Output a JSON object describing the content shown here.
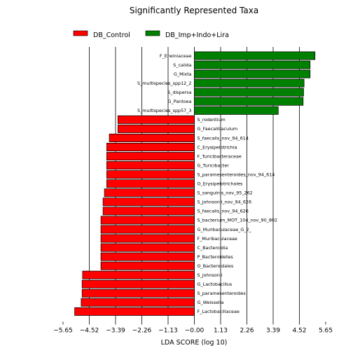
{
  "chart_data": {
    "type": "bar",
    "orientation": "horizontal",
    "title": "Significantly Represented Taxa",
    "xlabel": "LDA SCORE (log 10)",
    "ylabel": "",
    "xlim": [
      -5.65,
      5.65
    ],
    "xticks": [
      -5.65,
      -4.52,
      -3.39,
      -2.26,
      -1.13,
      0.0,
      1.13,
      2.26,
      3.39,
      4.52,
      5.65
    ],
    "xtick_labels": [
      "−5.65",
      "−4.52",
      "−3.39",
      "−2.26",
      "−1.13",
      "−0.00",
      "1.13",
      "2.26",
      "3.39",
      "4.52",
      "5.65"
    ],
    "grid": "vertical",
    "legend_position": "top-left",
    "series": [
      {
        "name": "DB_Control",
        "color": "#ff0000"
      },
      {
        "name": "DB_Imp+Indo+Lira",
        "color": "#008000"
      }
    ],
    "categories": [
      "F_Erwiniaceae",
      "S_calida",
      "G_Mixta",
      "S_multispecies_spp12_2",
      "S_dispersa",
      "G_Pantoea",
      "S_multispecies_spp57_3",
      "S_rodentium",
      "G_Faecalibaculum",
      "S_faecalis_nov_94_614",
      "C_Erysipelotrichia",
      "F_Turicibacteraceae",
      "G_Turicibacter",
      "S_paramesenteroides_nov_94_614",
      "O_Erysipelotrichales",
      "S_sanguinis_nov_95_262",
      "S_johnsonii_nov_94_626",
      "S_faecalis_nov_94_626",
      "S_bacterium_MOT_104_nov_90_802",
      "G_Muribaculaceae_G_2_",
      "F_Muribaculaceae",
      "C_Bacteroidia",
      "P_Bacteroidetes",
      "O_Bacteroidales",
      "S_johnsonii",
      "G_Lactobacillus",
      "S_paramesenteroides",
      "G_Weissella",
      "F_Lactobacillaceae"
    ],
    "values": [
      5.19,
      4.98,
      4.98,
      4.72,
      4.7,
      4.68,
      3.61,
      -3.29,
      -3.29,
      -3.66,
      -3.77,
      -3.77,
      -3.77,
      -3.77,
      -3.77,
      -3.87,
      -3.93,
      -3.93,
      -4.02,
      -4.02,
      -4.02,
      -4.02,
      -4.02,
      -4.02,
      -4.81,
      -4.83,
      -4.83,
      -4.87,
      -5.15
    ],
    "groups": [
      "DB_Imp+Indo+Lira",
      "DB_Imp+Indo+Lira",
      "DB_Imp+Indo+Lira",
      "DB_Imp+Indo+Lira",
      "DB_Imp+Indo+Lira",
      "DB_Imp+Indo+Lira",
      "DB_Imp+Indo+Lira",
      "DB_Control",
      "DB_Control",
      "DB_Control",
      "DB_Control",
      "DB_Control",
      "DB_Control",
      "DB_Control",
      "DB_Control",
      "DB_Control",
      "DB_Control",
      "DB_Control",
      "DB_Control",
      "DB_Control",
      "DB_Control",
      "DB_Control",
      "DB_Control",
      "DB_Control",
      "DB_Control",
      "DB_Control",
      "DB_Control",
      "DB_Control",
      "DB_Control"
    ]
  }
}
